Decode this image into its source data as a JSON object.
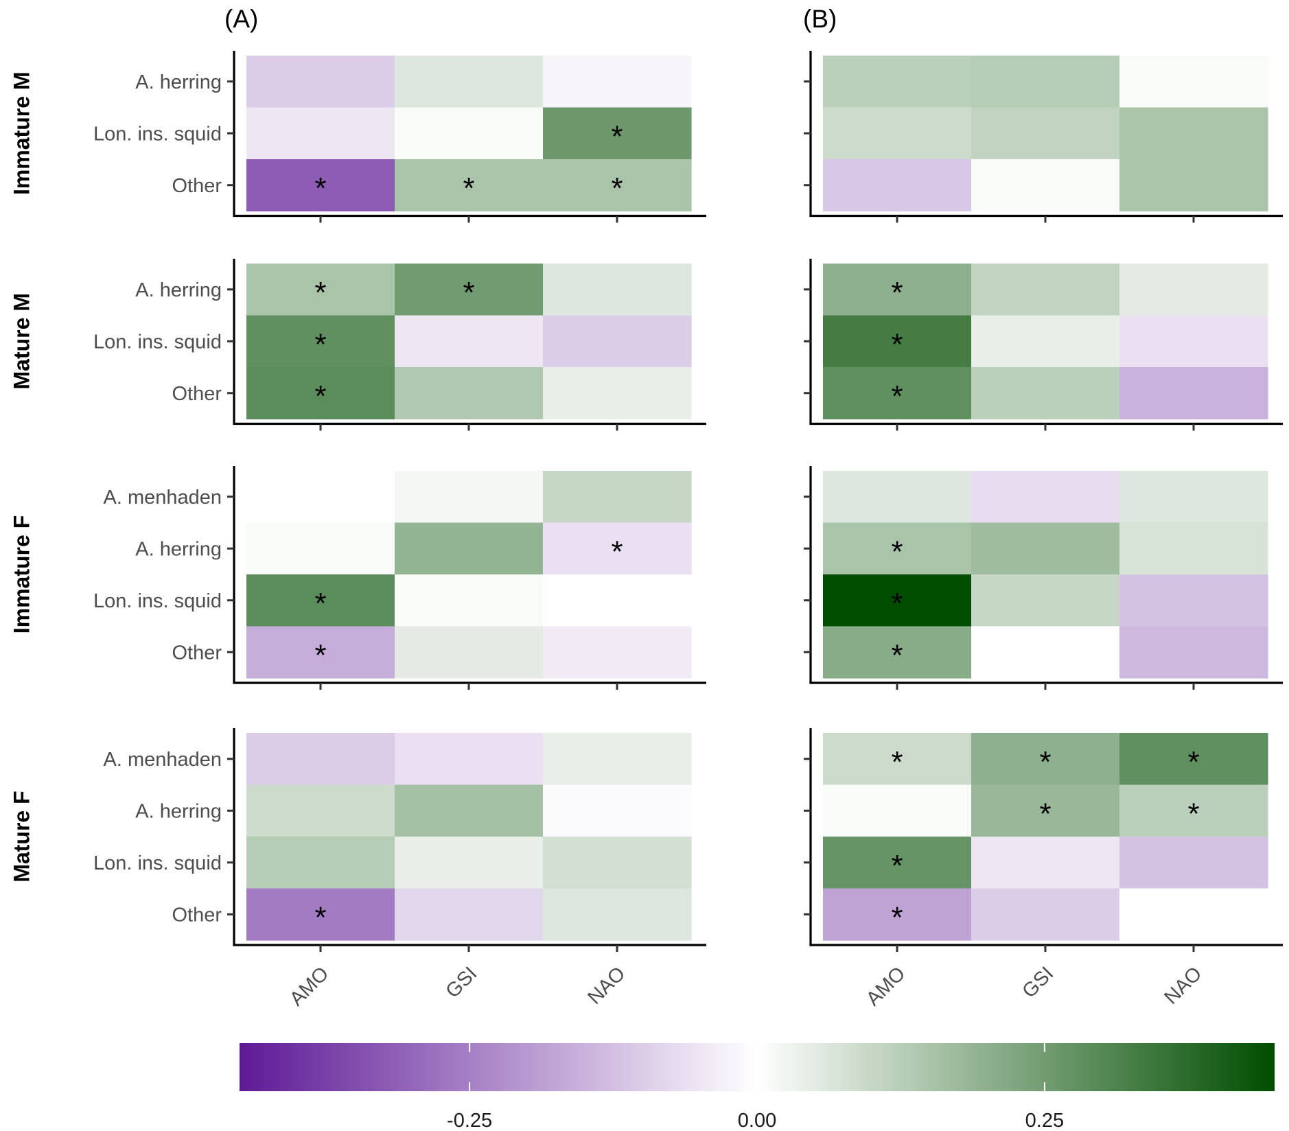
{
  "chart_data": {
    "type": "heatmap",
    "panels": [
      "(A)",
      "(B)"
    ],
    "x_categories": [
      "AMO",
      "GSI",
      "NAO"
    ],
    "groups": [
      {
        "name": "Immature M",
        "prey": [
          "A. herring",
          "Lon. ins. squid",
          "Other"
        ],
        "A": {
          "values": [
            [
              -0.1,
              0.06,
              -0.02
            ],
            [
              -0.05,
              0.01,
              0.26
            ],
            [
              -0.32,
              0.15,
              0.15
            ]
          ],
          "significant": [
            [
              false,
              false,
              false
            ],
            [
              false,
              false,
              true
            ],
            [
              true,
              true,
              true
            ]
          ]
        },
        "B": {
          "values": [
            [
              0.12,
              0.13,
              0.01
            ],
            [
              0.09,
              0.11,
              0.15
            ],
            [
              -0.11,
              0.01,
              0.15
            ]
          ],
          "significant": [
            [
              false,
              false,
              false
            ],
            [
              false,
              false,
              false
            ],
            [
              false,
              false,
              false
            ]
          ]
        }
      },
      {
        "name": "Mature M",
        "prey": [
          "A. herring",
          "Lon. ins. squid",
          "Other"
        ],
        "A": {
          "values": [
            [
              0.15,
              0.25,
              0.06
            ],
            [
              0.28,
              -0.05,
              -0.1
            ],
            [
              0.29,
              0.14,
              0.04
            ]
          ],
          "significant": [
            [
              true,
              true,
              false
            ],
            [
              true,
              false,
              false
            ],
            [
              true,
              false,
              false
            ]
          ]
        },
        "B": {
          "values": [
            [
              0.2,
              0.11,
              0.05
            ],
            [
              0.33,
              0.04,
              -0.06
            ],
            [
              0.28,
              0.12,
              -0.15
            ]
          ],
          "significant": [
            [
              true,
              false,
              false
            ],
            [
              true,
              false,
              false
            ],
            [
              true,
              false,
              false
            ]
          ]
        }
      },
      {
        "name": "Immature F",
        "prey": [
          "A. menhaden",
          "A. herring",
          "Lon. ins. squid",
          "Other"
        ],
        "A": {
          "values": [
            [
              0.0,
              0.02,
              0.1
            ],
            [
              0.01,
              0.19,
              -0.06
            ],
            [
              0.29,
              0.01,
              0.0
            ],
            [
              -0.16,
              0.05,
              -0.04
            ]
          ],
          "significant": [
            [
              false,
              false,
              false
            ],
            [
              false,
              false,
              true
            ],
            [
              true,
              false,
              false
            ],
            [
              true,
              false,
              false
            ]
          ]
        },
        "B": {
          "values": [
            [
              0.06,
              -0.07,
              0.06
            ],
            [
              0.15,
              0.17,
              0.07
            ],
            [
              0.45,
              0.1,
              -0.12
            ],
            [
              0.21,
              0.0,
              -0.14
            ]
          ],
          "significant": [
            [
              false,
              false,
              false
            ],
            [
              true,
              false,
              false
            ],
            [
              true,
              false,
              false
            ],
            [
              true,
              false,
              false
            ]
          ]
        }
      },
      {
        "name": "Mature F",
        "prey": [
          "A. menhaden",
          "A. herring",
          "Lon. ins. squid",
          "Other"
        ],
        "A": {
          "values": [
            [
              -0.1,
              -0.06,
              0.04
            ],
            [
              0.09,
              0.16,
              -0.01
            ],
            [
              0.13,
              0.04,
              0.08
            ],
            [
              -0.26,
              -0.08,
              0.06
            ]
          ],
          "significant": [
            [
              false,
              false,
              false
            ],
            [
              false,
              false,
              false
            ],
            [
              false,
              false,
              false
            ],
            [
              true,
              false,
              false
            ]
          ]
        },
        "B": {
          "values": [
            [
              0.09,
              0.2,
              0.28
            ],
            [
              0.01,
              0.18,
              0.12
            ],
            [
              0.27,
              -0.05,
              -0.12
            ],
            [
              -0.18,
              -0.1,
              0.0
            ]
          ],
          "significant": [
            [
              true,
              true,
              true
            ],
            [
              false,
              true,
              true
            ],
            [
              true,
              false,
              false
            ],
            [
              true,
              false,
              false
            ]
          ]
        }
      }
    ],
    "significance_marker": "*",
    "colorbar": {
      "min": -0.45,
      "max": 0.45,
      "ticks": [
        -0.25,
        0.0,
        0.25
      ],
      "tick_labels": [
        "-0.25",
        "0.00",
        "0.25"
      ],
      "low_color": "#5e1a96",
      "mid_color": "#ffffff",
      "high_color": "#004d00"
    },
    "legend": "bottom"
  }
}
